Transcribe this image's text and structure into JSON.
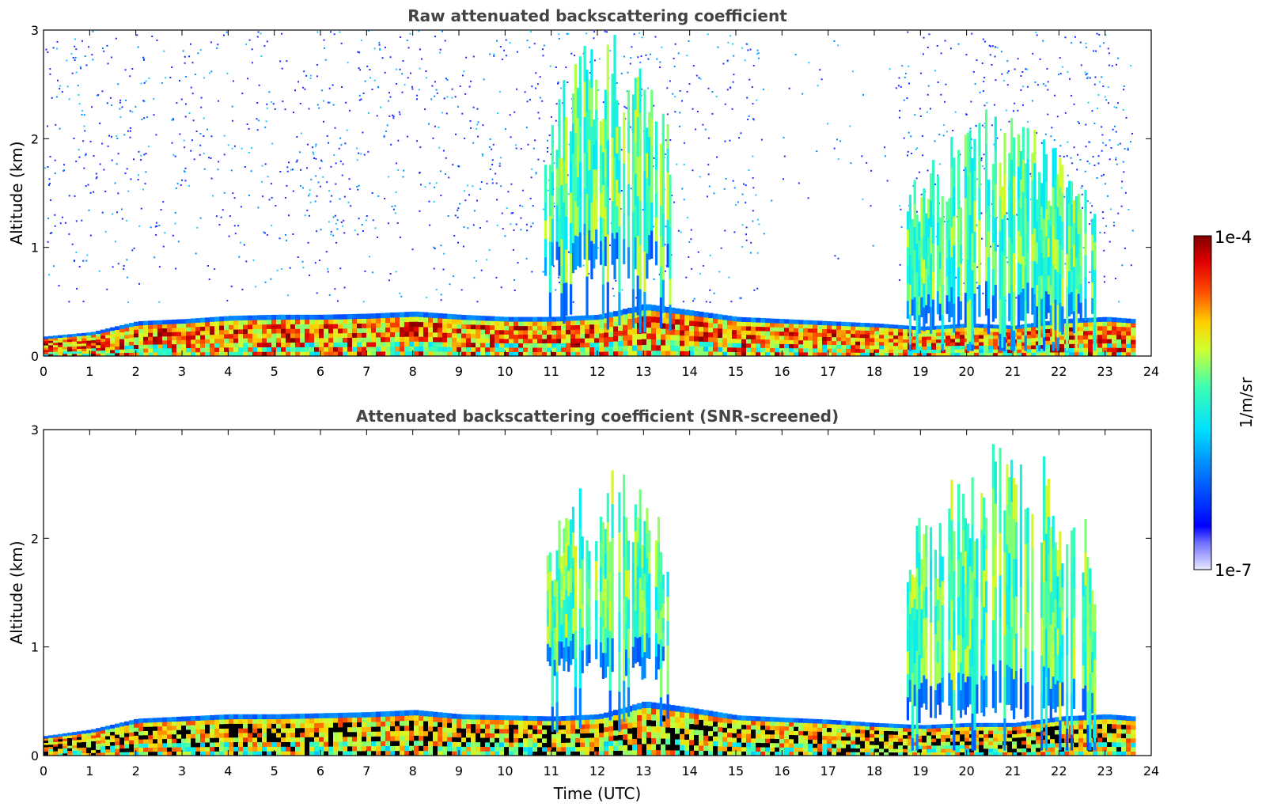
{
  "chart_data": [
    {
      "type": "heatmap",
      "title": "Raw attenuated backscattering coefficient",
      "xlabel": "",
      "ylabel": "Altitude (km)",
      "xlim": [
        0,
        24
      ],
      "ylim": [
        0,
        3
      ],
      "xticks": [
        "0",
        "1",
        "2",
        "3",
        "4",
        "5",
        "6",
        "7",
        "8",
        "9",
        "10",
        "11",
        "12",
        "13",
        "14",
        "15",
        "16",
        "17",
        "18",
        "19",
        "20",
        "21",
        "22",
        "23",
        "24"
      ],
      "yticks": [
        "0",
        "1",
        "2",
        "3"
      ],
      "scale": "log",
      "data_end_x": 23.6,
      "boundary_layer": [
        [
          0,
          0.18
        ],
        [
          1,
          0.22
        ],
        [
          2,
          0.32
        ],
        [
          3,
          0.34
        ],
        [
          4,
          0.37
        ],
        [
          5,
          0.38
        ],
        [
          6,
          0.38
        ],
        [
          7,
          0.39
        ],
        [
          8,
          0.41
        ],
        [
          9,
          0.38
        ],
        [
          10,
          0.36
        ],
        [
          11,
          0.36
        ],
        [
          12,
          0.38
        ],
        [
          13,
          0.48
        ],
        [
          14,
          0.42
        ],
        [
          15,
          0.36
        ],
        [
          16,
          0.34
        ],
        [
          17,
          0.32
        ],
        [
          18,
          0.3
        ],
        [
          19,
          0.27
        ],
        [
          20,
          0.3
        ],
        [
          21,
          0.28
        ],
        [
          22,
          0.34
        ],
        [
          23,
          0.36
        ],
        [
          23.6,
          0.34
        ]
      ],
      "clouds": [
        {
          "x": [
            10.8,
            13.6
          ],
          "y": [
            0.9,
            3.0
          ]
        },
        {
          "x": [
            18.7,
            22.8
          ],
          "y": [
            0.4,
            2.3
          ]
        }
      ]
    },
    {
      "type": "heatmap",
      "title": "Attenuated backscattering coefficient (SNR-screened)",
      "xlabel": "Time (UTC)",
      "ylabel": "Altitude (km)",
      "xlim": [
        0,
        24
      ],
      "ylim": [
        0,
        3
      ],
      "xticks": [
        "0",
        "1",
        "2",
        "3",
        "4",
        "5",
        "6",
        "7",
        "8",
        "9",
        "10",
        "11",
        "12",
        "13",
        "14",
        "15",
        "16",
        "17",
        "18",
        "19",
        "20",
        "21",
        "22",
        "23",
        "24"
      ],
      "yticks": [
        "0",
        "1",
        "2",
        "3"
      ],
      "scale": "log",
      "data_end_x": 23.6,
      "boundary_layer": [
        [
          0,
          0.18
        ],
        [
          1,
          0.24
        ],
        [
          2,
          0.34
        ],
        [
          3,
          0.36
        ],
        [
          4,
          0.38
        ],
        [
          5,
          0.38
        ],
        [
          6,
          0.39
        ],
        [
          7,
          0.4
        ],
        [
          8,
          0.42
        ],
        [
          9,
          0.38
        ],
        [
          10,
          0.37
        ],
        [
          11,
          0.36
        ],
        [
          12,
          0.38
        ],
        [
          13,
          0.5
        ],
        [
          14,
          0.44
        ],
        [
          15,
          0.37
        ],
        [
          16,
          0.35
        ],
        [
          17,
          0.33
        ],
        [
          18,
          0.3
        ],
        [
          19,
          0.28
        ],
        [
          20,
          0.3
        ],
        [
          21,
          0.3
        ],
        [
          22,
          0.36
        ],
        [
          23,
          0.38
        ],
        [
          23.6,
          0.36
        ]
      ],
      "clouds": [
        {
          "x": [
            10.8,
            13.6
          ],
          "y": [
            0.9,
            2.7
          ]
        },
        {
          "x": [
            18.7,
            22.8
          ],
          "y": [
            0.5,
            3.0
          ]
        }
      ]
    }
  ],
  "colorbar": {
    "min_label": "1e-7",
    "max_label": "1e-4",
    "unit_label": "1/m/sr",
    "colormap": "jet",
    "colors": [
      "#e6e6ff",
      "#0000ff",
      "#00ffff",
      "#ffff00",
      "#ff0000",
      "#800000"
    ]
  }
}
